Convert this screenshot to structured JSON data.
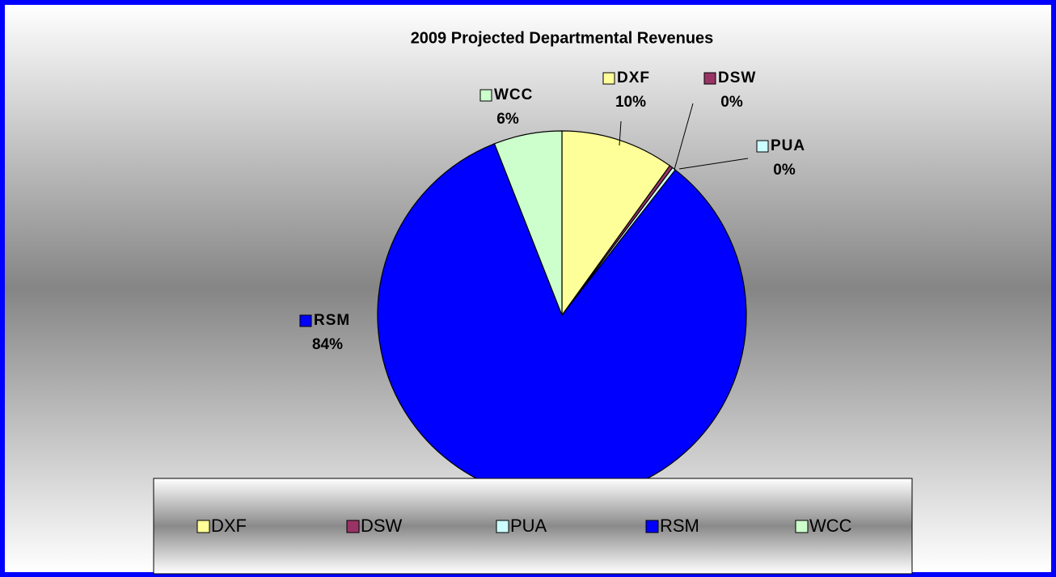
{
  "chart_data": {
    "type": "pie",
    "title": "2009 Projected Departmental Revenues",
    "categories": [
      "DXF",
      "DSW",
      "PUA",
      "RSM",
      "WCC"
    ],
    "values": [
      10,
      0.3,
      0.3,
      84,
      6
    ],
    "value_labels": [
      "10%",
      "0%",
      "0%",
      "84%",
      "6%"
    ],
    "colors": [
      "#ffff99",
      "#993366",
      "#ccffff",
      "#0000ff",
      "#ccffcc"
    ],
    "legend": "bottom"
  }
}
